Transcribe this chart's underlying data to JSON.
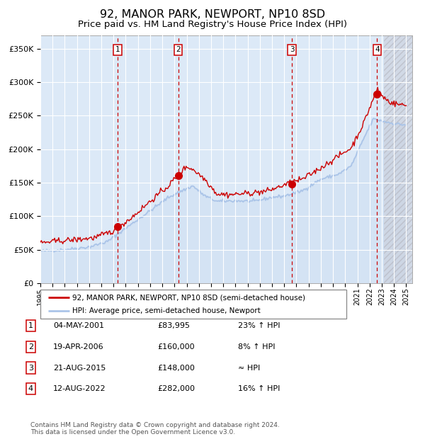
{
  "title": "92, MANOR PARK, NEWPORT, NP10 8SD",
  "subtitle": "Price paid vs. HM Land Registry's House Price Index (HPI)",
  "title_fontsize": 11.5,
  "subtitle_fontsize": 9.5,
  "ylabel_ticks": [
    "£0",
    "£50K",
    "£100K",
    "£150K",
    "£200K",
    "£250K",
    "£300K",
    "£350K"
  ],
  "ylabel_values": [
    0,
    50000,
    100000,
    150000,
    200000,
    250000,
    300000,
    350000
  ],
  "xlim_start": 1995.0,
  "xlim_end": 2025.5,
  "ylim": [
    0,
    370000
  ],
  "background_color": "#dce9f7",
  "grid_color": "#ffffff",
  "hpi_line_color": "#aac4e8",
  "price_line_color": "#cc0000",
  "sale_marker_color": "#cc0000",
  "sale_dashed_color": "#cc0000",
  "sales": [
    {
      "year": 2001.35,
      "price": 83995,
      "label": "1"
    },
    {
      "year": 2006.3,
      "price": 160000,
      "label": "2"
    },
    {
      "year": 2015.64,
      "price": 148000,
      "label": "3"
    },
    {
      "year": 2022.62,
      "price": 282000,
      "label": "4"
    }
  ],
  "table_rows": [
    {
      "num": "1",
      "date": "04-MAY-2001",
      "price": "£83,995",
      "rel": "23% ↑ HPI"
    },
    {
      "num": "2",
      "date": "19-APR-2006",
      "price": "£160,000",
      "rel": "8% ↑ HPI"
    },
    {
      "num": "3",
      "date": "21-AUG-2015",
      "price": "£148,000",
      "rel": "≈ HPI"
    },
    {
      "num": "4",
      "date": "12-AUG-2022",
      "price": "£282,000",
      "rel": "16% ↑ HPI"
    }
  ],
  "legend_entries": [
    "92, MANOR PARK, NEWPORT, NP10 8SD (semi-detached house)",
    "HPI: Average price, semi-detached house, Newport"
  ],
  "footer": "Contains HM Land Registry data © Crown copyright and database right 2024.\nThis data is licensed under the Open Government Licence v3.0.",
  "xtick_years": [
    1995,
    1996,
    1997,
    1998,
    1999,
    2000,
    2001,
    2002,
    2003,
    2004,
    2005,
    2006,
    2007,
    2008,
    2009,
    2010,
    2011,
    2012,
    2013,
    2014,
    2015,
    2016,
    2017,
    2018,
    2019,
    2020,
    2021,
    2022,
    2023,
    2024,
    2025
  ],
  "hatch_start": 2023.17
}
